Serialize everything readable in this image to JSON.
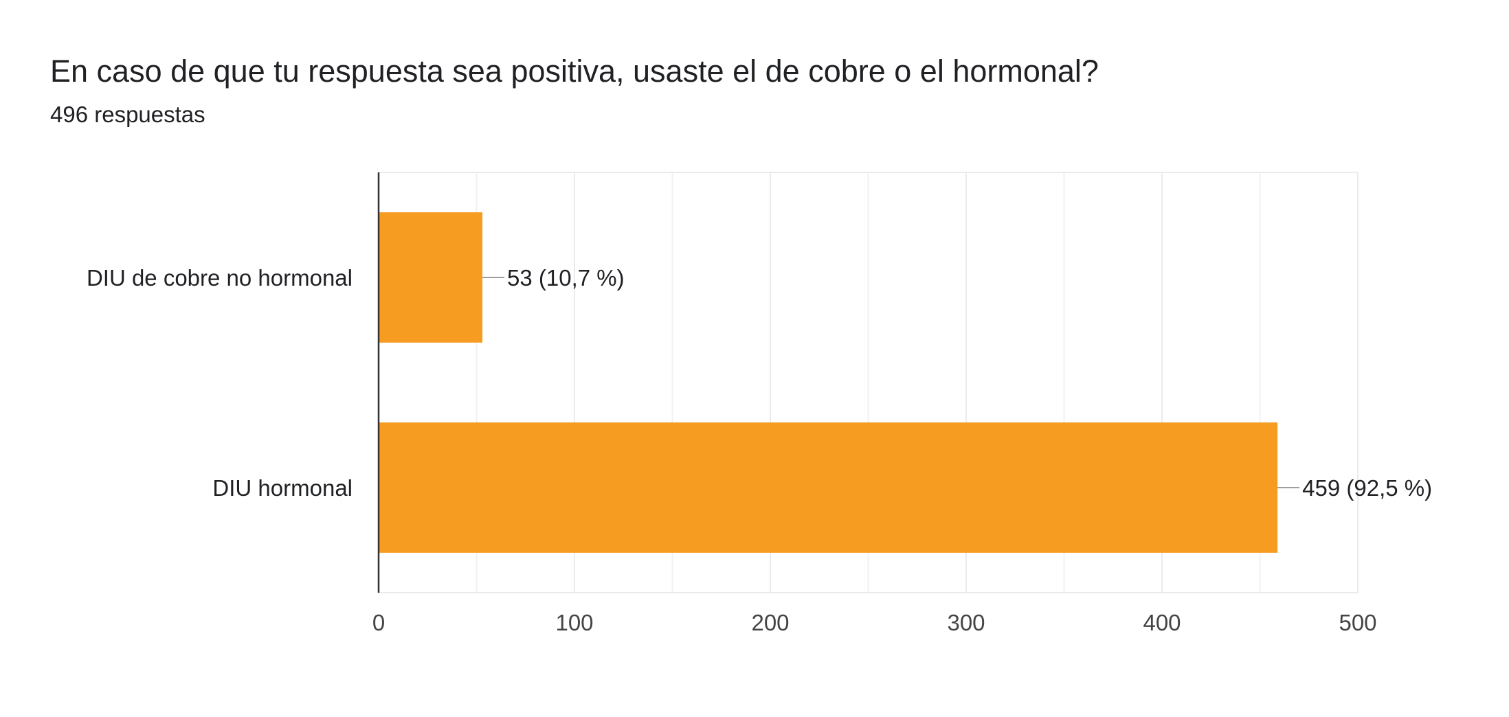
{
  "header": {
    "title": "En caso de que tu respuesta sea positiva, usaste el de cobre o el hormonal?",
    "subtitle": "496 respuestas"
  },
  "chart_data": {
    "type": "bar",
    "orientation": "horizontal",
    "title": "En caso de que tu respuesta sea positiva, usaste el de cobre o el hormonal?",
    "subtitle": "496 respuestas",
    "categories": [
      "DIU de cobre no hormonal",
      "DIU hormonal"
    ],
    "values": [
      53,
      459
    ],
    "data_labels": [
      "53 (10,7 %)",
      "459 (92,5 %)"
    ],
    "xlim": [
      0,
      500
    ],
    "xticks": [
      0,
      100,
      200,
      300,
      400,
      500
    ],
    "grid": true,
    "bar_color": "#f69d21"
  }
}
